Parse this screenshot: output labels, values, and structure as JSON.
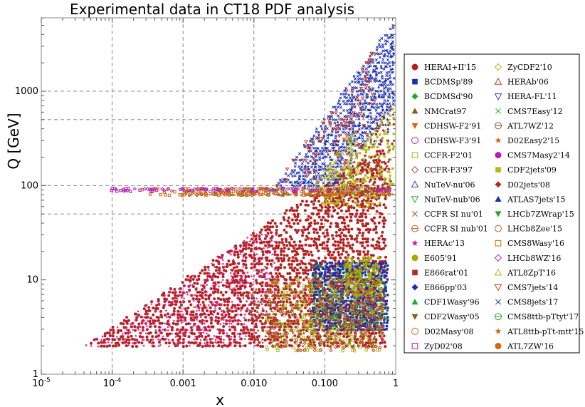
{
  "chart_data": {
    "type": "scatter",
    "title": "Experimental data in CT18 PDF analysis",
    "xlabel": "x",
    "ylabel": "Q [GeV]",
    "x_scale": "log",
    "y_scale": "log",
    "xlim": [
      1e-05,
      1
    ],
    "ylim": [
      1,
      6000
    ],
    "grid": {
      "style": "dashed",
      "x_lines": [
        0.0001,
        0.001,
        0.01,
        0.1
      ],
      "y_lines": [
        50,
        100,
        500,
        1000
      ]
    },
    "x_ticks": [
      {
        "value": 1e-05,
        "label": "10",
        "exp": "-5"
      },
      {
        "value": 0.0001,
        "label": "10",
        "exp": "-4"
      },
      {
        "value": 0.001,
        "label": "0.001",
        "exp": ""
      },
      {
        "value": 0.01,
        "label": "0.010",
        "exp": ""
      },
      {
        "value": 0.1,
        "label": "0.100",
        "exp": ""
      },
      {
        "value": 1,
        "label": "1",
        "exp": ""
      }
    ],
    "y_ticks": [
      {
        "value": 1,
        "label": "1"
      },
      {
        "value": 10,
        "label": "10"
      },
      {
        "value": 100,
        "label": "100"
      },
      {
        "value": 1000,
        "label": "1000"
      }
    ],
    "legend_position": "right",
    "series": [
      {
        "name": "HERAI+II'15",
        "marker": "disc",
        "color": "#b22222"
      },
      {
        "name": "BCDMSp'89",
        "marker": "square",
        "color": "#1a2eb0"
      },
      {
        "name": "BCDMSd'90",
        "marker": "diamond",
        "color": "#1fa82a"
      },
      {
        "name": "NMCrat97",
        "marker": "triangle-up",
        "color": "#8a5a1e"
      },
      {
        "name": "CDHSW-F2'91",
        "marker": "triangle-down",
        "color": "#d8670f"
      },
      {
        "name": "CDHSW-F3'91",
        "marker": "circle-open",
        "color": "#b01eb0"
      },
      {
        "name": "CCFR-F2'01",
        "marker": "square-open",
        "color": "#a8b81c"
      },
      {
        "name": "CCFR-F3'97",
        "marker": "diamond-open",
        "color": "#c83a2a"
      },
      {
        "name": "NuTeV-nu'06",
        "marker": "triangle-up-open",
        "color": "#3a3ad0"
      },
      {
        "name": "NuTeV-nub'06",
        "marker": "triangle-down-open",
        "color": "#2ab02a"
      },
      {
        "name": "CCFR SI nu'01",
        "marker": "cross",
        "color": "#a0521d"
      },
      {
        "name": "CCFR SI nub'01",
        "marker": "circle-bar-open",
        "color": "#c06018"
      },
      {
        "name": "HERAc'13",
        "marker": "star",
        "color": "#d81e8a"
      },
      {
        "name": "E605'91",
        "marker": "disc",
        "color": "#a8a800"
      },
      {
        "name": "E866rat'01",
        "marker": "square",
        "color": "#b22a2a"
      },
      {
        "name": "E866pp'03",
        "marker": "diamond",
        "color": "#1a2eb0"
      },
      {
        "name": "CDF1Wasy'96",
        "marker": "triangle-up",
        "color": "#1fa82a"
      },
      {
        "name": "CDF2Wasy'05",
        "marker": "triangle-down",
        "color": "#8a5a1e"
      },
      {
        "name": "D02Masy'08",
        "marker": "circle-open",
        "color": "#d8670f"
      },
      {
        "name": "ZyD02'08",
        "marker": "square-open",
        "color": "#b01eb0"
      },
      {
        "name": "ZyCDF2'10",
        "marker": "diamond-open",
        "color": "#b8b81c"
      },
      {
        "name": "HERAb'06",
        "marker": "triangle-up-open",
        "color": "#c83a2a"
      },
      {
        "name": "HERA-FL'11",
        "marker": "triangle-down-open",
        "color": "#3a3ad0"
      },
      {
        "name": "CMS7Easy'12",
        "marker": "cross",
        "color": "#2ab02a"
      },
      {
        "name": "ATL7WZ'12",
        "marker": "circle-bar-open",
        "color": "#8a5a1e"
      },
      {
        "name": "D02Easy2'15",
        "marker": "star",
        "color": "#d8670f"
      },
      {
        "name": "CMS7Masy2'14",
        "marker": "disc",
        "color": "#b01eb0"
      },
      {
        "name": "CDF2jets'09",
        "marker": "square",
        "color": "#b8b81c"
      },
      {
        "name": "D02jets'08",
        "marker": "diamond",
        "color": "#b22a2a"
      },
      {
        "name": "ATLAS7jets'15",
        "marker": "triangle-up",
        "color": "#1a2eb0"
      },
      {
        "name": "LHCb7ZWrap'15",
        "marker": "triangle-down",
        "color": "#1fa82a"
      },
      {
        "name": "LHCb8Zee'15",
        "marker": "circle-open",
        "color": "#c06018"
      },
      {
        "name": "CMS8Wasy'16",
        "marker": "square-open",
        "color": "#d8670f"
      },
      {
        "name": "LHCb8WZ'16",
        "marker": "diamond-open",
        "color": "#b01eb0"
      },
      {
        "name": "ATL8ZpT'16",
        "marker": "triangle-up-open",
        "color": "#b8b81c"
      },
      {
        "name": "CMS7jets'14",
        "marker": "triangle-down-open",
        "color": "#c83a2a"
      },
      {
        "name": "CMS8jets'17",
        "marker": "cross",
        "color": "#1a2eb0"
      },
      {
        "name": "CMS8ttb-pTtyt'17",
        "marker": "circle-bar-open",
        "color": "#1fa82a"
      },
      {
        "name": "ATL8ttb-pTt-mtt'15",
        "marker": "star",
        "color": "#d8670f"
      },
      {
        "name": "ATL7ZW'16",
        "marker": "disc",
        "color": "#d8670f"
      }
    ],
    "data_clusters": [
      {
        "series": "HERAI+II'15",
        "x_range": [
          5e-05,
          0.7
        ],
        "q_min": 2,
        "q_max": 250,
        "kinematic_limit_sqrt_s": 318,
        "density": 0.55
      },
      {
        "series": "HERAc'13",
        "x_range": [
          4e-05,
          0.02
        ],
        "q_min": 2,
        "q_max": 30,
        "kinematic_limit_sqrt_s": 318,
        "density": 0.35
      },
      {
        "series": "HERA-FL'11",
        "x_range": [
          0.001,
          0.01
        ],
        "q_min": 60,
        "q_max": 250,
        "kinematic_limit_sqrt_s": 318,
        "density": 0.2
      },
      {
        "series": "BCDMSp'89",
        "x_range": [
          0.07,
          0.75
        ],
        "q_min": 3,
        "q_max": 15,
        "density": 0.9
      },
      {
        "series": "BCDMSd'90",
        "x_range": [
          0.07,
          0.75
        ],
        "q_min": 3,
        "q_max": 14,
        "density": 0.3
      },
      {
        "series": "E605'91",
        "x_range": [
          0.2,
          0.6
        ],
        "q_min": 7,
        "q_max": 17,
        "density": 0.6
      },
      {
        "series": "CCFR-F2'01",
        "x_range": [
          0.015,
          0.65
        ],
        "q_min": 1.8,
        "q_max": 10,
        "density": 0.25
      },
      {
        "series": "CCFR-F3'97",
        "x_range": [
          0.015,
          0.65
        ],
        "q_min": 1.8,
        "q_max": 10,
        "density": 0.2
      },
      {
        "series": "NMCrat97",
        "x_range": [
          0.008,
          0.5
        ],
        "q_min": 2,
        "q_max": 8,
        "density": 0.2
      },
      {
        "series": "CMS8jets'17",
        "x_range": [
          0.02,
          1
        ],
        "q_min": 100,
        "q_max": 5000,
        "diagonal": true,
        "density": 0.7
      },
      {
        "series": "ATLAS7jets'15",
        "x_range": [
          0.003,
          1
        ],
        "q_min": 100,
        "q_max": 3000,
        "diagonal": true,
        "density": 0.2
      },
      {
        "series": "CMS7jets'14",
        "x_range": [
          0.003,
          0.5
        ],
        "q_min": 100,
        "q_max": 2500,
        "diagonal": true,
        "density": 0.15
      },
      {
        "series": "CDF2jets'09",
        "x_range": [
          0.05,
          1
        ],
        "q_min": 60,
        "q_max": 700,
        "diagonal": true,
        "density": 0.35
      },
      {
        "series": "D02jets'08",
        "x_range": [
          0.05,
          1
        ],
        "q_min": 60,
        "q_max": 700,
        "diagonal": true,
        "density": 0.25
      },
      {
        "series": "ATL7WZ'12",
        "x_range": [
          0.001,
          0.8
        ],
        "q_min": 80,
        "q_max": 92,
        "band": true,
        "density": 0.5
      },
      {
        "series": "D02Easy2'15",
        "x_range": [
          0.001,
          0.9
        ],
        "q_min": 80,
        "q_max": 80.5,
        "band": true,
        "density": 0.7
      },
      {
        "series": "CMS8Wasy'16",
        "x_range": [
          0.0002,
          0.8
        ],
        "q_min": 80,
        "q_max": 92,
        "band": true,
        "density": 0.2
      },
      {
        "series": "LHCb8WZ'16",
        "x_range": [
          0.0001,
          0.8
        ],
        "q_min": 88,
        "q_max": 92,
        "band": true,
        "density": 0.25
      },
      {
        "series": "ZyD02'08",
        "x_range": [
          0.0001,
          0.8
        ],
        "q_min": 88,
        "q_max": 92,
        "band": true,
        "density": 0.2
      },
      {
        "series": "ATL8ZpT'16",
        "x_range": [
          0.01,
          0.3
        ],
        "q_min": 90,
        "q_max": 400,
        "diagonal": true,
        "density": 0.4
      }
    ]
  }
}
